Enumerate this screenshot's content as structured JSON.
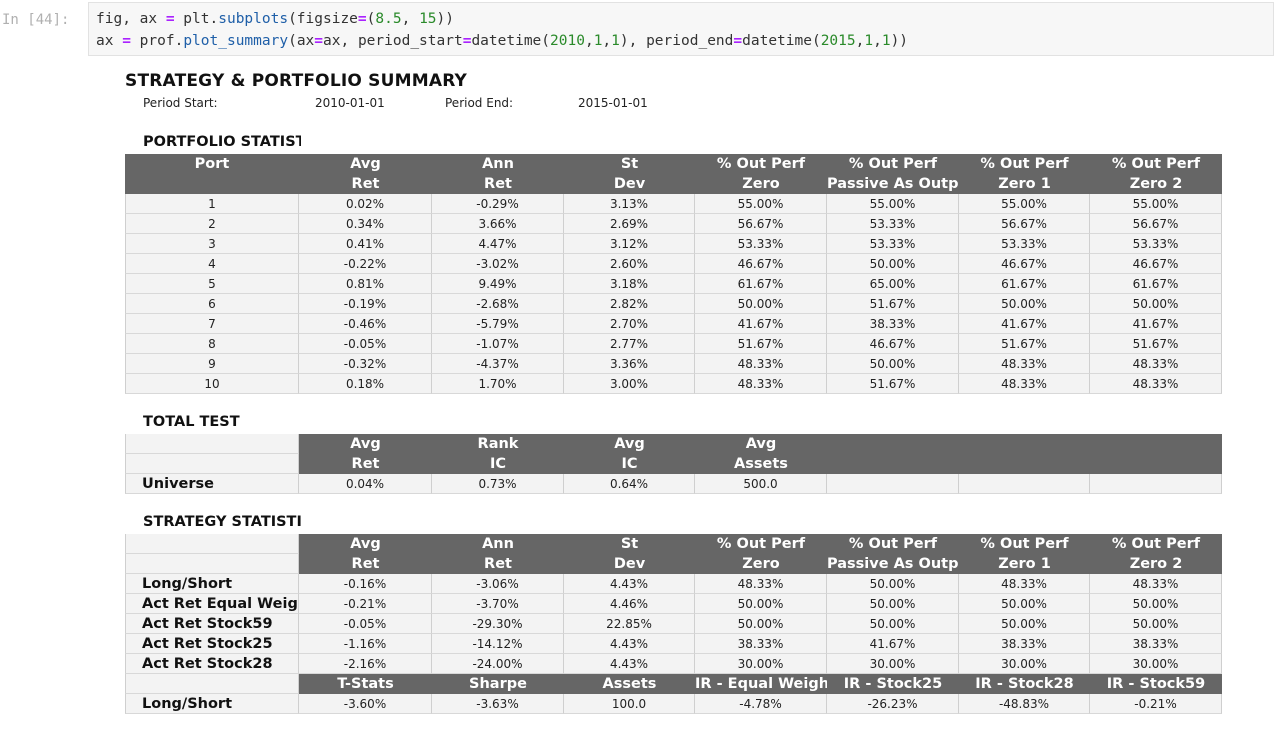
{
  "cell": {
    "prompt": "In [44]:",
    "code": {
      "line1": [
        "fig, ax ",
        "=",
        " plt.",
        "subplots",
        "(figsize",
        "=",
        "(",
        "8.5",
        ", ",
        "15",
        "))"
      ],
      "line2": [
        "ax ",
        "=",
        " prof.",
        "plot_summary",
        "(ax",
        "=",
        "ax, period_start",
        "=",
        "datetime(",
        "2010",
        ",",
        "1",
        ",",
        "1",
        "), period_end",
        "=",
        "datetime(",
        "2015",
        ",",
        "1",
        ",",
        "1",
        "))"
      ]
    }
  },
  "figure": {
    "title": "STRATEGY & PORTFOLIO SUMMARY",
    "period_start_label": "Period Start:",
    "period_start_value": "2010-01-01",
    "period_end_label": "Period End:",
    "period_end_value": "2015-01-01"
  },
  "portfolio_stats": {
    "title": "PORTFOLIO STATISTICS",
    "header1": [
      "Port",
      "Avg",
      "Ann",
      "St",
      "% Out Perf",
      "% Out Perf",
      "% Out Perf",
      "% Out Perf"
    ],
    "header2": [
      "",
      "Ret",
      "Ret",
      "Dev",
      "Zero",
      "Passive As Outperf",
      "Zero 1",
      "Zero 2"
    ],
    "rows": [
      [
        "1",
        "0.02%",
        "-0.29%",
        "3.13%",
        "55.00%",
        "55.00%",
        "55.00%",
        "55.00%"
      ],
      [
        "2",
        "0.34%",
        "3.66%",
        "2.69%",
        "56.67%",
        "53.33%",
        "56.67%",
        "56.67%"
      ],
      [
        "3",
        "0.41%",
        "4.47%",
        "3.12%",
        "53.33%",
        "53.33%",
        "53.33%",
        "53.33%"
      ],
      [
        "4",
        "-0.22%",
        "-3.02%",
        "2.60%",
        "46.67%",
        "50.00%",
        "46.67%",
        "46.67%"
      ],
      [
        "5",
        "0.81%",
        "9.49%",
        "3.18%",
        "61.67%",
        "65.00%",
        "61.67%",
        "61.67%"
      ],
      [
        "6",
        "-0.19%",
        "-2.68%",
        "2.82%",
        "50.00%",
        "51.67%",
        "50.00%",
        "50.00%"
      ],
      [
        "7",
        "-0.46%",
        "-5.79%",
        "2.70%",
        "41.67%",
        "38.33%",
        "41.67%",
        "41.67%"
      ],
      [
        "8",
        "-0.05%",
        "-1.07%",
        "2.77%",
        "51.67%",
        "46.67%",
        "51.67%",
        "51.67%"
      ],
      [
        "9",
        "-0.32%",
        "-4.37%",
        "3.36%",
        "48.33%",
        "50.00%",
        "48.33%",
        "48.33%"
      ],
      [
        "10",
        "0.18%",
        "1.70%",
        "3.00%",
        "48.33%",
        "51.67%",
        "48.33%",
        "48.33%"
      ]
    ]
  },
  "total_test": {
    "title": "TOTAL TEST",
    "header1": [
      "Avg",
      "Rank",
      "Avg",
      "Avg"
    ],
    "header2": [
      "Ret",
      "IC",
      "IC",
      "Assets"
    ],
    "row_label": "Universe",
    "row": [
      "0.04%",
      "0.73%",
      "0.64%",
      "500.0",
      "",
      "",
      ""
    ]
  },
  "strategy_stats": {
    "title": "STRATEGY STATISTICS",
    "header1": [
      "Avg",
      "Ann",
      "St",
      "% Out Perf",
      "% Out Perf",
      "% Out Perf",
      "% Out Perf"
    ],
    "header2": [
      "Ret",
      "Ret",
      "Dev",
      "Zero",
      "Passive As Outperf",
      "Zero 1",
      "Zero 2"
    ],
    "rows": [
      {
        "label": "Long/Short",
        "values": [
          "-0.16%",
          "-3.06%",
          "4.43%",
          "48.33%",
          "50.00%",
          "48.33%",
          "48.33%"
        ]
      },
      {
        "label": "Act Ret Equal Weight",
        "values": [
          "-0.21%",
          "-3.70%",
          "4.46%",
          "50.00%",
          "50.00%",
          "50.00%",
          "50.00%"
        ]
      },
      {
        "label": "Act Ret Stock59",
        "values": [
          "-0.05%",
          "-29.30%",
          "22.85%",
          "50.00%",
          "50.00%",
          "50.00%",
          "50.00%"
        ]
      },
      {
        "label": "Act Ret Stock25",
        "values": [
          "-1.16%",
          "-14.12%",
          "4.43%",
          "38.33%",
          "41.67%",
          "38.33%",
          "38.33%"
        ]
      },
      {
        "label": "Act Ret Stock28",
        "values": [
          "-2.16%",
          "-24.00%",
          "4.43%",
          "30.00%",
          "30.00%",
          "30.00%",
          "30.00%"
        ]
      }
    ],
    "header3": [
      "T-Stats",
      "Sharpe",
      "Assets",
      "IR - Equal Weight",
      "IR - Stock25",
      "IR - Stock28",
      "IR - Stock59"
    ],
    "final_row": {
      "label": "Long/Short",
      "values": [
        "-3.60%",
        "-3.63%",
        "100.0",
        "-4.78%",
        "-26.23%",
        "-48.83%",
        "-0.21%"
      ]
    }
  }
}
